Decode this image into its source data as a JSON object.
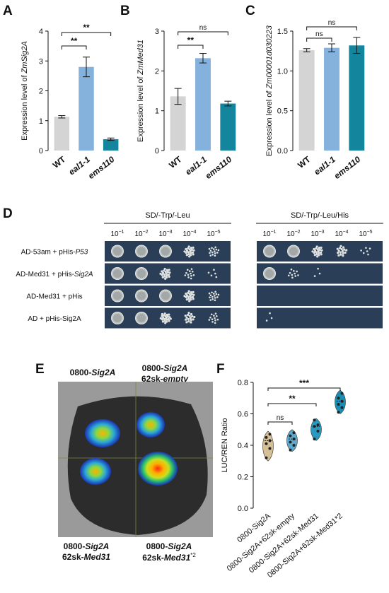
{
  "panels": {
    "A": "A",
    "B": "B",
    "C": "C",
    "D": "D",
    "E": "E",
    "F": "F"
  },
  "colors": {
    "wt": "#d4d4d4",
    "eal": "#84b2dc",
    "ems": "#13869e",
    "plate_bg": "#2a3f57",
    "violin_wt": "#d4bf96",
    "violin_empty": "#5fa8ce",
    "violin_med31": "#2a99bf",
    "violin_med31x2": "#1a8fb5"
  },
  "chart_data": [
    {
      "panel": "A",
      "type": "bar",
      "ylabel_prefix": "Expression level of ",
      "ylabel_gene": "ZmSig2A",
      "categories": [
        "WT",
        "eal1-1",
        "ems110"
      ],
      "values": [
        1.13,
        2.8,
        0.38
      ],
      "errors": [
        0.04,
        0.33,
        0.04
      ],
      "ylim": [
        0,
        4
      ],
      "yticks": [
        "0",
        "1",
        "2",
        "3",
        "4"
      ],
      "significance": [
        {
          "from": "WT",
          "to": "eal1-1",
          "label": "**"
        },
        {
          "from": "WT",
          "to": "ems110",
          "label": "**"
        }
      ]
    },
    {
      "panel": "B",
      "type": "bar",
      "ylabel_prefix": "Expression level of ",
      "ylabel_gene": "ZmMed31",
      "categories": [
        "WT",
        "eal1-1",
        "ems110"
      ],
      "values": [
        1.36,
        2.32,
        1.18
      ],
      "errors": [
        0.2,
        0.12,
        0.06
      ],
      "ylim": [
        0,
        3
      ],
      "yticks": [
        "0",
        "1",
        "2",
        "3"
      ],
      "significance": [
        {
          "from": "WT",
          "to": "eal1-1",
          "label": "**"
        },
        {
          "from": "WT",
          "to": "ems110",
          "label": "ns"
        }
      ]
    },
    {
      "panel": "C",
      "type": "bar",
      "ylabel_prefix": "Expression level of ",
      "ylabel_gene": "Zm00001d030223",
      "categories": [
        "WT",
        "eal1-1",
        "ems110"
      ],
      "values": [
        1.26,
        1.29,
        1.32
      ],
      "errors": [
        0.02,
        0.05,
        0.1
      ],
      "ylim": [
        0,
        1.5
      ],
      "yticks": [
        "0.0",
        "0.5",
        "1.0",
        "1.5"
      ],
      "significance": [
        {
          "from": "WT",
          "to": "eal1-1",
          "label": "ns"
        },
        {
          "from": "WT",
          "to": "ems110",
          "label": "ns"
        }
      ]
    },
    {
      "panel": "F",
      "type": "violin",
      "ylabel": "LUC/REN Ratio",
      "categories": [
        "0800-Sig2A",
        "0800-Sig2A+62sk-empty",
        "0800-Sig2A+62sk-Med31",
        "0800-Sig2A+62sk-Med31*2"
      ],
      "points": [
        [
          0.32,
          0.38,
          0.41,
          0.43,
          0.45,
          0.47
        ],
        [
          0.37,
          0.4,
          0.42,
          0.44,
          0.46,
          0.48
        ],
        [
          0.44,
          0.49,
          0.52,
          0.53,
          0.56
        ],
        [
          0.61,
          0.64,
          0.66,
          0.68,
          0.7,
          0.73
        ]
      ],
      "ranges": [
        [
          0.3,
          0.49
        ],
        [
          0.36,
          0.5
        ],
        [
          0.43,
          0.57
        ],
        [
          0.6,
          0.75
        ]
      ],
      "ylim": [
        0,
        0.8
      ],
      "yticks": [
        "0.0",
        "0.2",
        "0.4",
        "0.6",
        "0.8"
      ],
      "significance": [
        {
          "from": 0,
          "to": 1,
          "label": "ns"
        },
        {
          "from": 0,
          "to": 2,
          "label": "**"
        },
        {
          "from": 0,
          "to": 3,
          "label": "***"
        }
      ]
    }
  ],
  "yeast": {
    "left_title": "SD/-Trp/-Leu",
    "right_title": "SD/-Trp/-Leu/His",
    "dilution_base": "10",
    "dilutions": [
      "−1",
      "−2",
      "−3",
      "−4",
      "−5"
    ],
    "rows": [
      {
        "prefix": "AD-53am + pHis-",
        "gene": "P53",
        "italic": true,
        "left": [
          3,
          3,
          2.5,
          2,
          1.5
        ],
        "right": [
          3,
          3,
          2,
          1.6,
          0.6
        ]
      },
      {
        "prefix": "AD-Med31 + pHis-",
        "gene": "Sig2A",
        "italic": true,
        "left": [
          3,
          3,
          2,
          1.2,
          0.5
        ],
        "right": [
          3,
          1,
          0.3,
          0,
          0
        ]
      },
      {
        "prefix": "AD-Med31 + pHis",
        "gene": "",
        "italic": false,
        "left": [
          3,
          3,
          2.5,
          2,
          1.5
        ],
        "right": [
          0,
          0,
          0,
          0,
          0
        ]
      },
      {
        "prefix": "AD + pHis-Sig2A",
        "gene": "",
        "italic": false,
        "left": [
          3,
          3,
          2.2,
          1.6,
          1.2
        ],
        "right": [
          0.3,
          0,
          0,
          0,
          0
        ]
      }
    ]
  },
  "leaf": {
    "tl_a": "0800-",
    "tl_b": "Sig2A",
    "tr_a": "0800-",
    "tr_b": "Sig2A",
    "tr_c": "62sk-",
    "tr_d": "empty",
    "bl_a": "0800-",
    "bl_b": "Sig2A",
    "bl_c": "62sk-",
    "bl_d": "Med31",
    "br_a": "0800-",
    "br_b": "Sig2A",
    "br_c": "62sk-",
    "br_d": "Med31",
    "br_e": "*2"
  }
}
